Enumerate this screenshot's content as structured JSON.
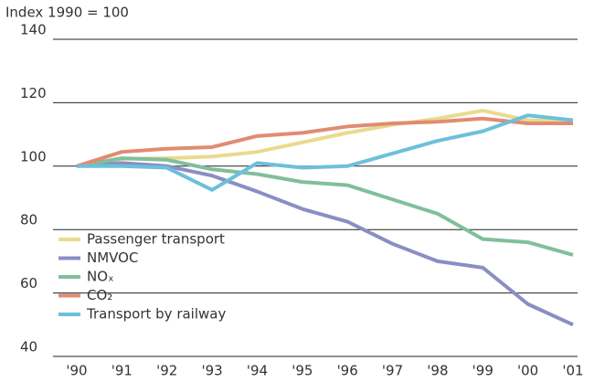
{
  "chart_data": {
    "type": "line",
    "y_label": "Index 1990 = 100",
    "categories": [
      "'90",
      "'91",
      "'92",
      "'93",
      "'94",
      "'95",
      "'96",
      "'97",
      "'98",
      "'99",
      "'00",
      "'01"
    ],
    "series": [
      {
        "name": "Passenger transport",
        "color": "#e9da8e",
        "values": [
          100,
          102.3,
          102.5,
          103,
          104.5,
          107.5,
          110.5,
          113,
          115,
          117.5,
          114.5,
          114
        ]
      },
      {
        "name": "NMVOC",
        "color": "#8a8ec4",
        "values": [
          100,
          101,
          100,
          97,
          92,
          86.5,
          82.5,
          75.5,
          70,
          68,
          56.5,
          50
        ]
      },
      {
        "name": "NOₓ",
        "color": "#80bf9b",
        "values": [
          100,
          102.5,
          102,
          99,
          97.5,
          95,
          94,
          89.5,
          85,
          77,
          76,
          72
        ]
      },
      {
        "name": "CO₂",
        "color": "#e18b72",
        "values": [
          100,
          104.5,
          105.5,
          106,
          109.5,
          110.5,
          112.5,
          113.5,
          114,
          115,
          113.5,
          113.5
        ]
      },
      {
        "name": "Transport by railway",
        "color": "#6cc0da",
        "values": [
          100,
          100,
          99.5,
          92.5,
          101,
          99.5,
          100,
          104,
          108,
          111,
          116,
          114.5
        ]
      }
    ],
    "ylim": [
      40,
      140
    ],
    "yticks": [
      40,
      60,
      80,
      100,
      120,
      140
    ],
    "grid": true,
    "legend": "lower left"
  }
}
